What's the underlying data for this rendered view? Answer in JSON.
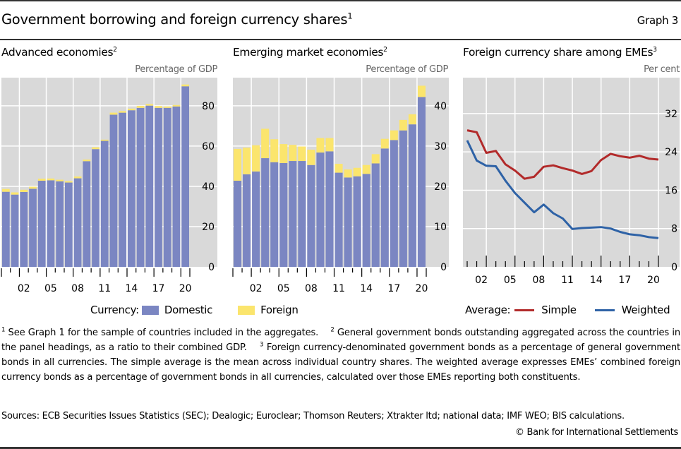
{
  "header": {
    "title": "Government borrowing and foreign currency shares",
    "title_footnote": "1",
    "graph_number": "Graph 3"
  },
  "colors": {
    "domestic": "#7b86c2",
    "foreign": "#fbe56d",
    "simple": "#b22a2a",
    "weighted": "#2e62a6",
    "plot_bg": "#d9d9d9",
    "grid": "#ffffff"
  },
  "chart_data": [
    {
      "type": "bar",
      "stacked": true,
      "title": "Advanced economies",
      "title_footnote": "2",
      "unit_label": "Percentage of GDP",
      "xlabel": "",
      "ylabel": "Percentage of GDP",
      "x": [
        2000,
        2001,
        2002,
        2003,
        2004,
        2005,
        2006,
        2007,
        2008,
        2009,
        2010,
        2011,
        2012,
        2013,
        2014,
        2015,
        2016,
        2017,
        2018,
        2019,
        2020
      ],
      "x_tick_labels": [
        "02",
        "05",
        "08",
        "11",
        "14",
        "17",
        "20"
      ],
      "x_tick_years": [
        2002,
        2005,
        2008,
        2011,
        2014,
        2017,
        2020
      ],
      "ylim": [
        0,
        94
      ],
      "y_ticks": [
        0,
        20,
        40,
        60,
        80
      ],
      "y_axis_side": "right",
      "grid": true,
      "series": [
        {
          "name": "Domestic",
          "values": [
            37.3,
            35.9,
            37.2,
            38.8,
            42.8,
            43.0,
            42.5,
            41.9,
            44.0,
            52.5,
            58.5,
            62.6,
            75.6,
            76.6,
            77.8,
            79.0,
            80.1,
            79.0,
            79.0,
            79.7,
            89.7
          ]
        },
        {
          "name": "Foreign",
          "values": [
            1.4,
            1.1,
            1.1,
            1.0,
            1.0,
            0.9,
            0.8,
            0.7,
            0.9,
            0.8,
            0.9,
            0.6,
            1.0,
            0.8,
            0.8,
            1.0,
            0.8,
            0.9,
            0.7,
            0.7,
            0.9
          ]
        }
      ]
    },
    {
      "type": "bar",
      "stacked": true,
      "title": "Emerging market economies",
      "title_footnote": "2",
      "unit_label": "Percentage of GDP",
      "xlabel": "",
      "ylabel": "Percentage of GDP",
      "x": [
        2000,
        2001,
        2002,
        2003,
        2004,
        2005,
        2006,
        2007,
        2008,
        2009,
        2010,
        2011,
        2012,
        2013,
        2014,
        2015,
        2016,
        2017,
        2018,
        2019,
        2020
      ],
      "x_tick_labels": [
        "02",
        "05",
        "08",
        "11",
        "14",
        "17",
        "20"
      ],
      "x_tick_years": [
        2002,
        2005,
        2008,
        2011,
        2014,
        2017,
        2020
      ],
      "ylim": [
        0,
        47
      ],
      "y_ticks": [
        0,
        10,
        20,
        30,
        40
      ],
      "y_axis_side": "right",
      "grid": true,
      "series": [
        {
          "name": "Domestic",
          "values": [
            21.4,
            23.0,
            23.7,
            27.0,
            26.0,
            25.8,
            26.3,
            26.3,
            25.3,
            28.4,
            28.7,
            23.4,
            22.2,
            22.5,
            23.1,
            25.7,
            29.4,
            31.5,
            33.9,
            35.4,
            42.2
          ]
        },
        {
          "name": "Foreign",
          "values": [
            7.9,
            6.6,
            6.5,
            7.3,
            5.7,
            4.7,
            4.0,
            3.6,
            3.8,
            3.6,
            3.3,
            2.2,
            2.0,
            2.1,
            2.2,
            2.3,
            2.4,
            2.4,
            2.6,
            2.5,
            2.8
          ]
        }
      ],
      "legend": {
        "label": "Currency:",
        "entries": [
          "Domestic",
          "Foreign"
        ],
        "placement": "bottom"
      }
    },
    {
      "type": "line",
      "title": "Foreign currency share among EMEs",
      "title_footnote": "3",
      "unit_label": "Per cent",
      "xlabel": "",
      "ylabel": "Per cent",
      "x": [
        2000,
        2001,
        2002,
        2003,
        2004,
        2005,
        2006,
        2007,
        2008,
        2009,
        2010,
        2011,
        2012,
        2013,
        2014,
        2015,
        2016,
        2017,
        2018,
        2019,
        2020
      ],
      "x_tick_labels": [
        "02",
        "05",
        "08",
        "11",
        "14",
        "17",
        "20"
      ],
      "x_tick_years": [
        2002,
        2005,
        2008,
        2011,
        2014,
        2017,
        2020
      ],
      "ylim": [
        0,
        39.5
      ],
      "y_ticks": [
        0,
        8,
        16,
        24,
        32
      ],
      "y_axis_side": "right",
      "grid": true,
      "series": [
        {
          "name": "Simple",
          "values": [
            28.5,
            28.1,
            23.8,
            24.2,
            21.4,
            20.1,
            18.4,
            18.8,
            20.9,
            21.2,
            20.6,
            20.1,
            19.4,
            20.0,
            22.3,
            23.6,
            23.1,
            22.8,
            23.2,
            22.6,
            22.4
          ]
        },
        {
          "name": "Weighted",
          "values": [
            26.4,
            22.2,
            21.1,
            21.0,
            18.0,
            15.4,
            13.4,
            11.4,
            13.0,
            11.2,
            10.1,
            7.9,
            8.1,
            8.2,
            8.3,
            8.0,
            7.3,
            6.8,
            6.6,
            6.2,
            6.0
          ]
        }
      ],
      "legend": {
        "label": "Average:",
        "entries": [
          "Simple",
          "Weighted"
        ],
        "placement": "bottom"
      }
    }
  ],
  "legends": {
    "currency_label": "Currency:",
    "domestic": "Domestic",
    "foreign": "Foreign",
    "average_label": "Average:",
    "simple": "Simple",
    "weighted": "Weighted"
  },
  "footnotes": {
    "n1_mark": "1",
    "n1": " See Graph 1 for the sample of countries included in the aggregates.",
    "n2_mark": "2",
    "n2": " General government bonds outstanding aggregated across the countries in the panel headings, as a ratio to their combined GDP.",
    "n3_mark": "3",
    "n3": " Foreign currency-denominated government bonds as a percentage of general government bonds in all currencies. The simple average is the mean across individual country shares. The weighted average expresses EMEs’ combined foreign currency bonds as a percentage of government bonds in all currencies, calculated over those EMEs reporting both constituents."
  },
  "sources": "Sources: ECB Securities Issues Statistics (SEC); Dealogic; Euroclear; Thomson Reuters; Xtrakter ltd; national data; IMF WEO; BIS calculations.",
  "copyright": "© Bank for International Settlements"
}
